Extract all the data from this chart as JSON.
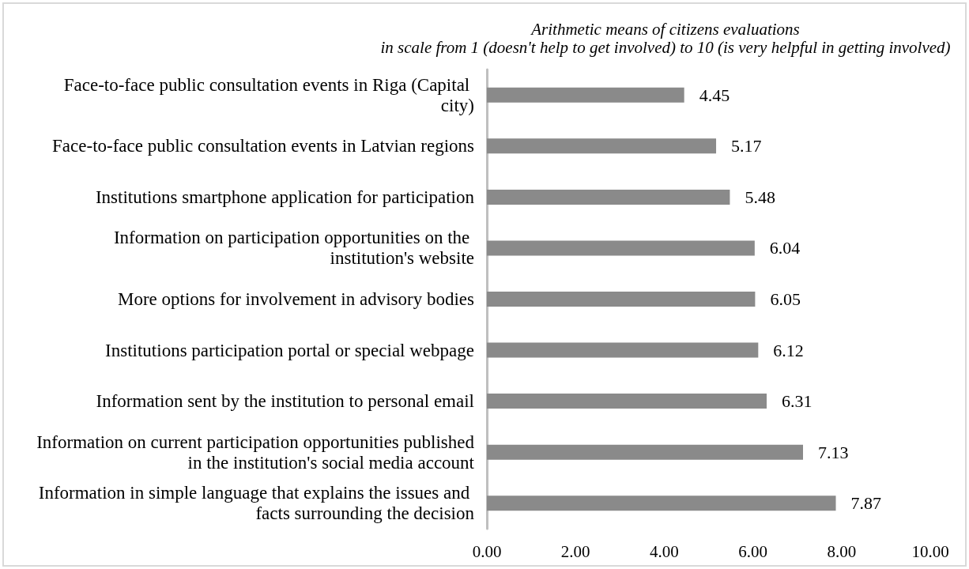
{
  "chart_data": {
    "type": "bar",
    "orientation": "horizontal",
    "title": "Arithmetic means of citizens evaluations",
    "subtitle": "in scale from 1 (doesn't help to get involved) to 10 (is very helpful in getting involved)",
    "categories": [
      "Face-to-face public consultation events in Riga (Capital city)",
      "Face-to-face public consultation events in Latvian regions",
      "Institutions smartphone application for participation",
      "Information on participation opportunities on the institution's website",
      "More options for involvement in advisory bodies",
      "Institutions participation portal or special webpage",
      "Information sent by the institution to personal email",
      "Information on current participation opportunities published in the institution's social media account",
      "Information in simple language that explains the issues and facts surrounding the decision"
    ],
    "values": [
      4.45,
      5.17,
      5.48,
      6.04,
      6.05,
      6.12,
      6.31,
      7.13,
      7.87
    ],
    "color": "#8a8a8a",
    "xlim": [
      0,
      10
    ],
    "xticks": [
      {
        "value": 0,
        "label": "0.00"
      },
      {
        "value": 2,
        "label": "2.00"
      },
      {
        "value": 4,
        "label": "4.00"
      },
      {
        "value": 6,
        "label": "6.00"
      },
      {
        "value": 8,
        "label": "8.00"
      },
      {
        "value": 10,
        "label": "10.00"
      }
    ],
    "data_labels": true,
    "grid": false
  }
}
